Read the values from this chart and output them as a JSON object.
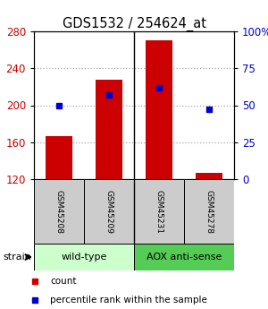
{
  "title": "GDS1532 / 254624_at",
  "samples": [
    "GSM45208",
    "GSM45209",
    "GSM45231",
    "GSM45278"
  ],
  "counts": [
    167,
    228,
    270,
    127
  ],
  "percentiles": [
    50,
    57,
    62,
    47
  ],
  "ylim_left": [
    120,
    280
  ],
  "ylim_right": [
    0,
    100
  ],
  "yticks_left": [
    120,
    160,
    200,
    240,
    280
  ],
  "yticks_right": [
    0,
    25,
    50,
    75,
    100
  ],
  "ytick_labels_right": [
    "0",
    "25",
    "50",
    "75",
    "100%"
  ],
  "bar_color": "#cc0000",
  "dot_color": "#0000cc",
  "grid_color": "#aaaaaa",
  "strain_groups": [
    {
      "label": "wild-type",
      "samples": [
        0,
        1
      ],
      "color": "#ccffcc"
    },
    {
      "label": "AOX anti-sense",
      "samples": [
        2,
        3
      ],
      "color": "#55cc55"
    }
  ],
  "strain_label": "strain",
  "legend_count_label": "count",
  "legend_pct_label": "percentile rank within the sample",
  "bar_width": 0.55,
  "sample_cell_color": "#cccccc",
  "title_fontsize": 10.5,
  "tick_fontsize": 8.5,
  "sample_fontsize": 6.5,
  "strain_fontsize": 8,
  "legend_fontsize": 7.5
}
